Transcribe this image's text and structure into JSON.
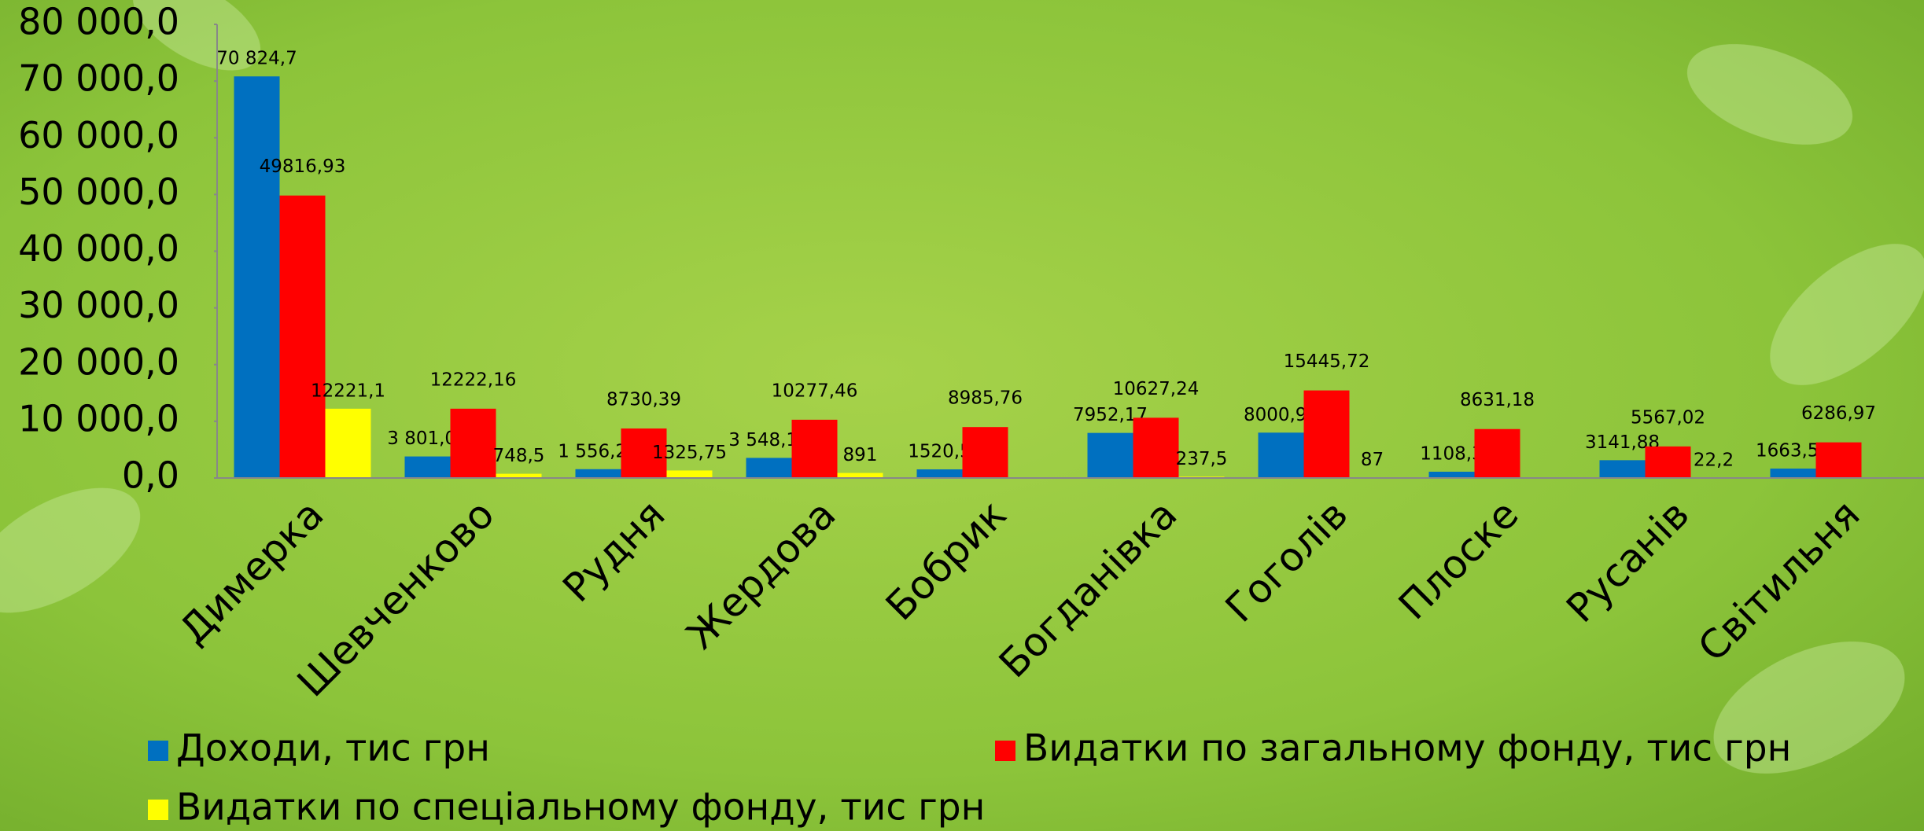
{
  "chart_data": {
    "type": "bar",
    "categories": [
      "Димерка",
      "Шевченково",
      "Рудня",
      "Жердова",
      "Бобрик",
      "Богданівка",
      "Гоголів",
      "Плоске",
      "Русанів",
      "Світильня"
    ],
    "series": [
      {
        "name": "Доходи, тис грн",
        "color": "#0070c0",
        "values": [
          70824.7,
          3801.0,
          1556.2,
          3548.1,
          1520.5,
          7952.17,
          8000.96,
          1108.3,
          3141.88,
          1663.51
        ],
        "value_labels": [
          "70 824,7",
          "3 801,00",
          "1 556,20",
          "3 548,10",
          "1520,5",
          "7952,17",
          "8000,96",
          "1108,3",
          "3141,88",
          "1663,51"
        ]
      },
      {
        "name": "Видатки по загальному фонду, тис грн",
        "color": "#ff0000",
        "values": [
          49816.93,
          12222.16,
          8730.39,
          10277.46,
          8985.76,
          10627.24,
          15445.72,
          8631.18,
          5567.02,
          6286.97
        ],
        "value_labels": [
          "49816,93",
          "12222,16",
          "8730,39",
          "10277,46",
          "8985,76",
          "10627,24",
          "15445,72",
          "8631,18",
          "5567,02",
          "6286,97"
        ]
      },
      {
        "name": "Видатки по спеціальному фонду, тис грн",
        "color": "#ffff00",
        "values": [
          12221.1,
          748.5,
          1325.75,
          891,
          null,
          237.5,
          87,
          null,
          22.2,
          null
        ],
        "value_labels": [
          "12221,1",
          "748,5",
          "1325,75",
          "891",
          null,
          "237,5",
          "87",
          null,
          "22,2",
          null
        ]
      }
    ],
    "ylim": [
      0,
      80000
    ],
    "yticks": [
      {
        "value": 0,
        "label": "0,0"
      },
      {
        "value": 10000,
        "label": "10 000,0"
      },
      {
        "value": 20000,
        "label": "20 000,0"
      },
      {
        "value": 30000,
        "label": "30 000,0"
      },
      {
        "value": 40000,
        "label": "40 000,0"
      },
      {
        "value": 50000,
        "label": "50 000,0"
      },
      {
        "value": 60000,
        "label": "60 000,0"
      },
      {
        "value": 70000,
        "label": "70 000,0"
      },
      {
        "value": 80000,
        "label": "80 000,0"
      }
    ]
  }
}
